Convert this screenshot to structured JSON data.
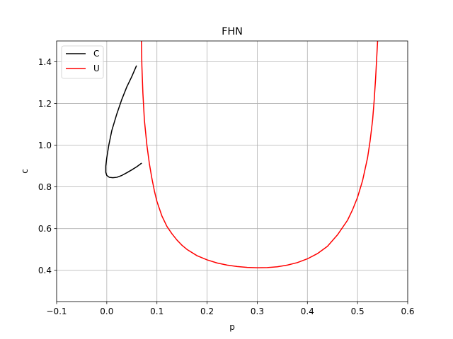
{
  "chart_data": {
    "type": "line",
    "title": "FHN",
    "xlabel": "p",
    "ylabel": "c",
    "xlim": [
      -0.1,
      0.6
    ],
    "ylim": [
      0.25,
      1.5
    ],
    "xticks": [
      -0.1,
      0.0,
      0.1,
      0.2,
      0.3,
      0.4,
      0.5,
      0.6
    ],
    "xtick_labels": [
      "−0.1",
      "0.0",
      "0.1",
      "0.2",
      "0.3",
      "0.4",
      "0.5",
      "0.6"
    ],
    "yticks": [
      0.4,
      0.6,
      0.8,
      1.0,
      1.2,
      1.4
    ],
    "ytick_labels": [
      "0.4",
      "0.6",
      "0.8",
      "1.0",
      "1.2",
      "1.4"
    ],
    "grid": true,
    "legend_position": "top-left",
    "series": [
      {
        "name": "C",
        "color": "#000000",
        "x": [
          0.059,
          0.05,
          0.04,
          0.03,
          0.02,
          0.01,
          0.004,
          0.0,
          -0.002,
          -0.002,
          0.0,
          0.005,
          0.012,
          0.02,
          0.03,
          0.04,
          0.05,
          0.06,
          0.069
        ],
        "y": [
          1.38,
          1.33,
          1.28,
          1.22,
          1.15,
          1.07,
          1.0,
          0.94,
          0.9,
          0.87,
          0.855,
          0.846,
          0.844,
          0.846,
          0.855,
          0.868,
          0.882,
          0.897,
          0.913
        ]
      },
      {
        "name": "U",
        "color": "#ff0000",
        "x": [
          0.069,
          0.07,
          0.072,
          0.075,
          0.08,
          0.085,
          0.09,
          0.095,
          0.1,
          0.11,
          0.12,
          0.13,
          0.14,
          0.15,
          0.16,
          0.18,
          0.2,
          0.22,
          0.24,
          0.26,
          0.28,
          0.3,
          0.32,
          0.34,
          0.36,
          0.38,
          0.4,
          0.42,
          0.44,
          0.46,
          0.48,
          0.49,
          0.5,
          0.51,
          0.52,
          0.525,
          0.53,
          0.533,
          0.536,
          0.538,
          0.54
        ],
        "y": [
          1.5,
          1.38,
          1.25,
          1.12,
          1.0,
          0.91,
          0.84,
          0.78,
          0.73,
          0.66,
          0.61,
          0.575,
          0.545,
          0.52,
          0.5,
          0.47,
          0.45,
          0.435,
          0.425,
          0.418,
          0.414,
          0.412,
          0.413,
          0.417,
          0.425,
          0.437,
          0.455,
          0.48,
          0.515,
          0.57,
          0.64,
          0.69,
          0.75,
          0.83,
          0.94,
          1.02,
          1.12,
          1.21,
          1.32,
          1.41,
          1.5
        ]
      }
    ]
  }
}
